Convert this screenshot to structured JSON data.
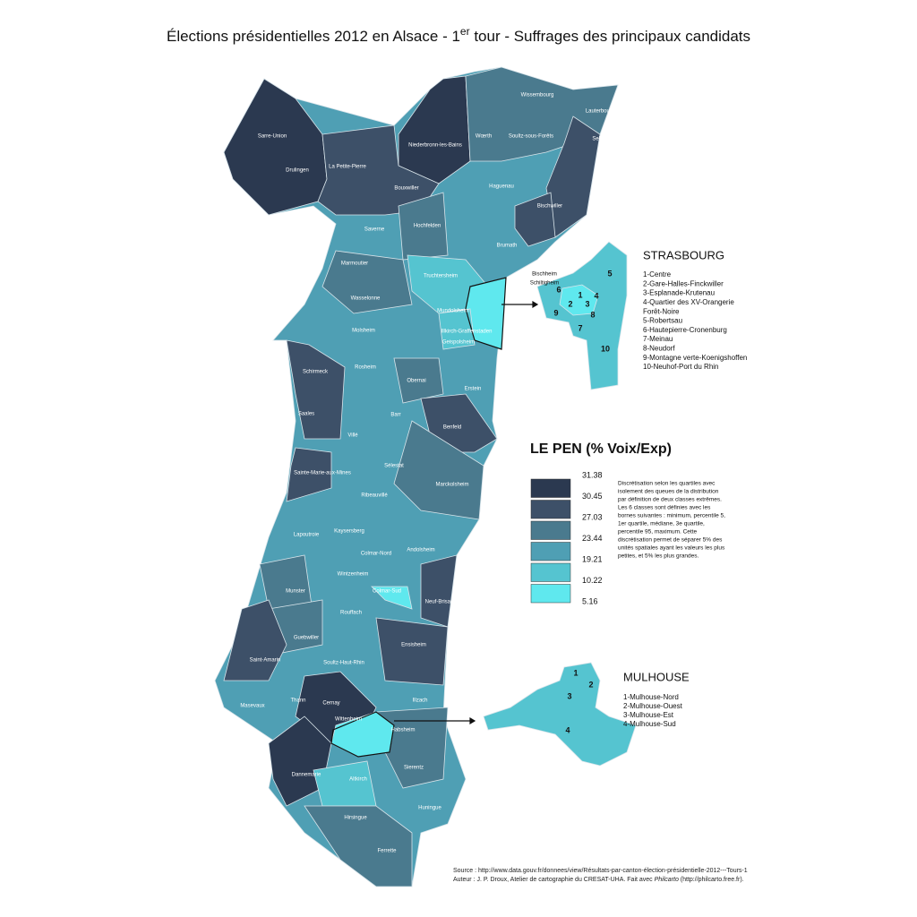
{
  "title": {
    "main": "Élections présidentielles 2012 en Alsace - 1",
    "sup": "er",
    "rest": " tour - Suffrages des principaux candidats"
  },
  "legend": {
    "title": "LE PEN (% Voix/Exp)",
    "bounds": [
      31.38,
      30.45,
      27.03,
      23.44,
      19.21,
      10.22,
      5.16
    ],
    "colors": [
      "#2b3950",
      "#3d5068",
      "#4a7a8e",
      "#4f9fb4",
      "#55c4d0",
      "#5fe8ee"
    ],
    "note": [
      "Discrétisation selon les quartiles avec",
      "isolement des queues de la distribution",
      "par définition de deux classes extrêmes.",
      "Les 6 classes sont définies avec les",
      "bornes suivantes : minimum, percentile 5,",
      "1er quartile, médiane, 3e quartile,",
      "percentile 95, maximum. Cette",
      "discrétisation permet de séparer 5% des",
      "unités spatiales ayant les valeurs les plus",
      "petites, et 5% les plus grandes."
    ]
  },
  "cantons": [
    "Wissembourg",
    "Lauterbourg",
    "Sarre-Union",
    "Niederbronn-les-Bains",
    "Wœrth",
    "Soultz-sous-Forêts",
    "Seltz",
    "Drulingen",
    "La Petite-Pierre",
    "Bouxwiller",
    "Haguenau",
    "Bischwiller",
    "Saverne",
    "Hochfelden",
    "Brumath",
    "Marmoutier",
    "Truchtersheim",
    "Bischheim",
    "Schiltigheim",
    "Wasselonne",
    "Mundolsheim",
    "Illkirch-Graffenstaden",
    "Geispolsheim",
    "Molsheim",
    "Schirmeck",
    "Rosheim",
    "Obernai",
    "Erstein",
    "Saales",
    "Barr",
    "Benfeld",
    "Villé",
    "Sélestat",
    "Sainte-Marie-aux-Mines",
    "Ribeauvillé",
    "Marckolsheim",
    "Lapoutroie",
    "Kaysersberg",
    "Colmar-Nord",
    "Andolsheim",
    "Wintzenheim",
    "Colmar-Sud",
    "Munster",
    "Rouffach",
    "Neuf-Brisach",
    "Guebwiller",
    "Ensisheim",
    "Saint-Amarin",
    "Soultz-Haut-Rhin",
    "Masevaux",
    "Thann",
    "Cernay",
    "Wittenheim",
    "Illzach",
    "Habsheim",
    "Sierentz",
    "Dannemarie",
    "Altkirch",
    "Hirsingue",
    "Huningue",
    "Ferrette"
  ],
  "strasbourg": {
    "title": "STRASBOURG",
    "items": [
      "1-Centre",
      "2-Gare-Halles-Finckwiller",
      "3-Esplanade-Krutenau",
      "4-Quartier des XV-Orangerie",
      "Forêt-Noire",
      "5-Robertsau",
      "6-Hautepierre-Cronenburg",
      "7-Meinau",
      "8-Neudorf",
      "9-Montagne verte-Koenigshoffen",
      "10-Neuhof-Port du Rhin"
    ],
    "map_labels": [
      "1",
      "2",
      "3",
      "4",
      "5",
      "6",
      "7",
      "8",
      "9",
      "10"
    ]
  },
  "mulhouse": {
    "title": "MULHOUSE",
    "items": [
      "1-Mulhouse-Nord",
      "2-Mulhouse-Ouest",
      "3-Mulhouse-Est",
      "4-Mulhouse-Sud"
    ],
    "map_labels": [
      "1",
      "2",
      "3",
      "4"
    ]
  },
  "source": {
    "line1": "Source : http://www.data.gouv.fr/donnees/view/Résultats-par-canton-élection-présidentielle-2012---Tours-1",
    "line2a": "Auteur : J. P. Droux, Atelier de cartographie du CRESAT-UHA. Fait avec ",
    "line2b": "Philcarto",
    "line2c": " (http://philcarto.free.fr)."
  }
}
